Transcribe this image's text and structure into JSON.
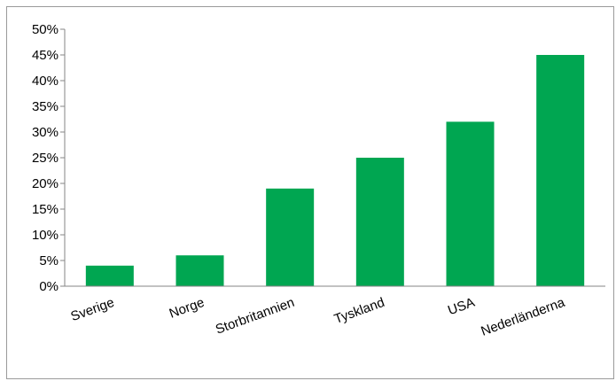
{
  "chart_data": {
    "type": "bar",
    "categories": [
      "Sverige",
      "Norge",
      "Storbritannien",
      "Tyskland",
      "USA",
      "Nederländerna"
    ],
    "values": [
      4,
      6,
      19,
      25,
      32,
      45
    ],
    "ylim": [
      0,
      50
    ],
    "yticks": [
      "0%",
      "5%",
      "10%",
      "15%",
      "20%",
      "25%",
      "30%",
      "35%",
      "40%",
      "45%",
      "50%"
    ],
    "title": "",
    "xlabel": "",
    "ylabel": "",
    "grid": false,
    "legend": "none",
    "bar_color": "#00a651"
  }
}
